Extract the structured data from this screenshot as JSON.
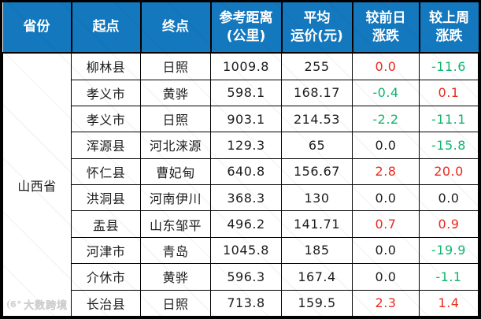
{
  "chart_data": {
    "type": "table",
    "columns": [
      [
        "省份"
      ],
      [
        "起点"
      ],
      [
        "终点"
      ],
      [
        "参考距离",
        "(公里)"
      ],
      [
        "平均",
        "运价(元)"
      ],
      [
        "较前日",
        "涨跌"
      ],
      [
        "较上周",
        "涨跌"
      ]
    ],
    "province": "山西省",
    "rows": [
      {
        "origin": "柳林县",
        "dest": "日照",
        "distance": "1009.8",
        "price": "255",
        "day": "0.0",
        "day_dir": "up",
        "week": "-11.6",
        "week_dir": "down"
      },
      {
        "origin": "孝义市",
        "dest": "黄骅",
        "distance": "598.1",
        "price": "168.17",
        "day": "-0.4",
        "day_dir": "down",
        "week": "0.1",
        "week_dir": "up"
      },
      {
        "origin": "孝义市",
        "dest": "日照",
        "distance": "903.1",
        "price": "214.53",
        "day": "-2.2",
        "day_dir": "down",
        "week": "-11.1",
        "week_dir": "down"
      },
      {
        "origin": "浑源县",
        "dest": "河北涞源",
        "distance": "129.3",
        "price": "65",
        "day": "0.0",
        "day_dir": "zero",
        "week": "-15.8",
        "week_dir": "down"
      },
      {
        "origin": "怀仁县",
        "dest": "曹妃甸",
        "distance": "640.8",
        "price": "156.67",
        "day": "2.8",
        "day_dir": "up",
        "week": "20.0",
        "week_dir": "up"
      },
      {
        "origin": "洪洞县",
        "dest": "河南伊川",
        "distance": "368.3",
        "price": "130",
        "day": "0.0",
        "day_dir": "zero",
        "week": "0.0",
        "week_dir": "zero"
      },
      {
        "origin": "盂县",
        "dest": "山东邹平",
        "distance": "496.2",
        "price": "141.71",
        "day": "0.7",
        "day_dir": "up",
        "week": "0.9",
        "week_dir": "up"
      },
      {
        "origin": "河津市",
        "dest": "青岛",
        "distance": "1045.8",
        "price": "185",
        "day": "0.0",
        "day_dir": "zero",
        "week": "-19.9",
        "week_dir": "down"
      },
      {
        "origin": "介休市",
        "dest": "黄骅",
        "distance": "596.3",
        "price": "167.4",
        "day": "0.0",
        "day_dir": "zero",
        "week": "-1.1",
        "week_dir": "down"
      },
      {
        "origin": "长治县",
        "dest": "日照",
        "distance": "713.8",
        "price": "159.5",
        "day": "2.3",
        "day_dir": "up",
        "week": "1.4",
        "week_dir": "up"
      }
    ]
  },
  "watermark": {
    "logo": "6°",
    "text": "大数跨境"
  },
  "colors": {
    "header_bg": "#1478be",
    "header_text": "#ffffff",
    "grid": "#000000",
    "up_red": "#ea2a1e",
    "down_green": "#10b46d",
    "text": "#1c1c1c",
    "watermark": "#d6d6d6"
  }
}
